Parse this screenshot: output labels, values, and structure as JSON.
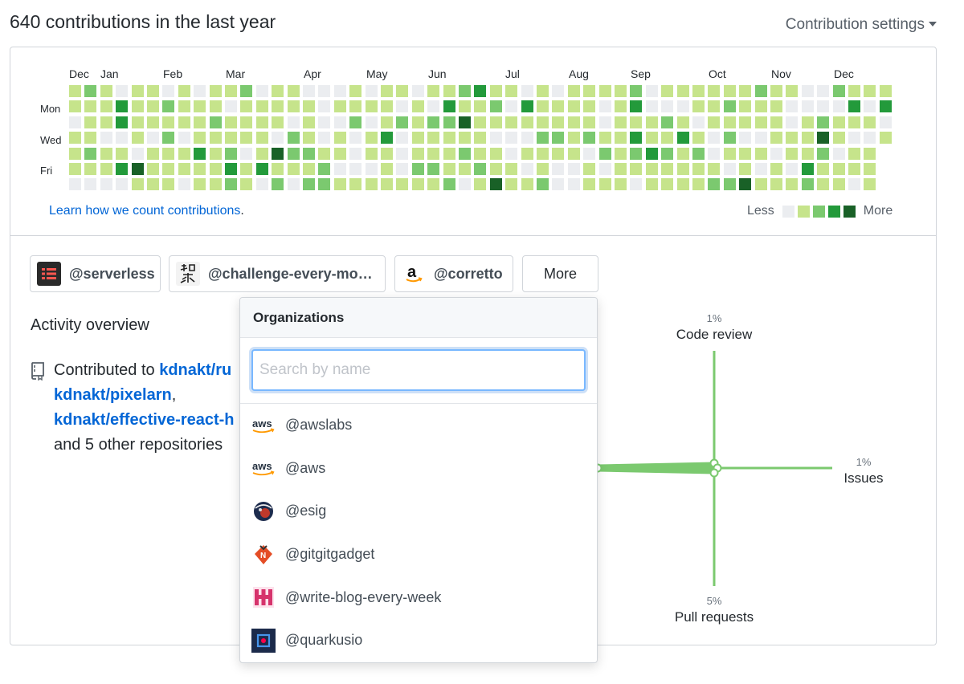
{
  "header": {
    "title": "640 contributions in the last year",
    "settings_label": "Contribution settings"
  },
  "calendar": {
    "months": [
      "Dec",
      "Jan",
      "Feb",
      "Mar",
      "Apr",
      "May",
      "Jun",
      "Jul",
      "Aug",
      "Sep",
      "Oct",
      "Nov",
      "Dec"
    ],
    "days": [
      "Mon",
      "Wed",
      "Fri"
    ],
    "learn_link": "Learn how we count contributions",
    "learn_suffix": ".",
    "legend_less": "Less",
    "legend_more": "More",
    "levels": [
      "#ebedf0",
      "#c6e48b",
      "#7bc96f",
      "#239a3b",
      "#196127"
    ]
  },
  "orgs": {
    "buttons": [
      "@serverless",
      "@challenge-every-mo…",
      "@corretto"
    ],
    "more_label": "More"
  },
  "activity": {
    "title": "Activity overview",
    "contributed_prefix": "Contributed to ",
    "repo1": "kdnakt/ru",
    "repo2": "kdnakt/pixelarn",
    "repo2_suffix": ",",
    "repo3": "kdnakt/effective-react-h",
    "others": "and 5 other repositories"
  },
  "radar": {
    "code_review_pct": "1%",
    "code_review": "Code review",
    "issues_pct": "1%",
    "issues": "Issues",
    "pull_requests_pct": "5%",
    "pull_requests": "Pull requests",
    "color": "#7bc96f"
  },
  "dropdown": {
    "title": "Organizations",
    "search_placeholder": "Search by name",
    "items": [
      "@awslabs",
      "@aws",
      "@esig",
      "@gitgitgadget",
      "@write-blog-every-week",
      "@quarkusio"
    ],
    "aws_logo_text": "aws"
  }
}
